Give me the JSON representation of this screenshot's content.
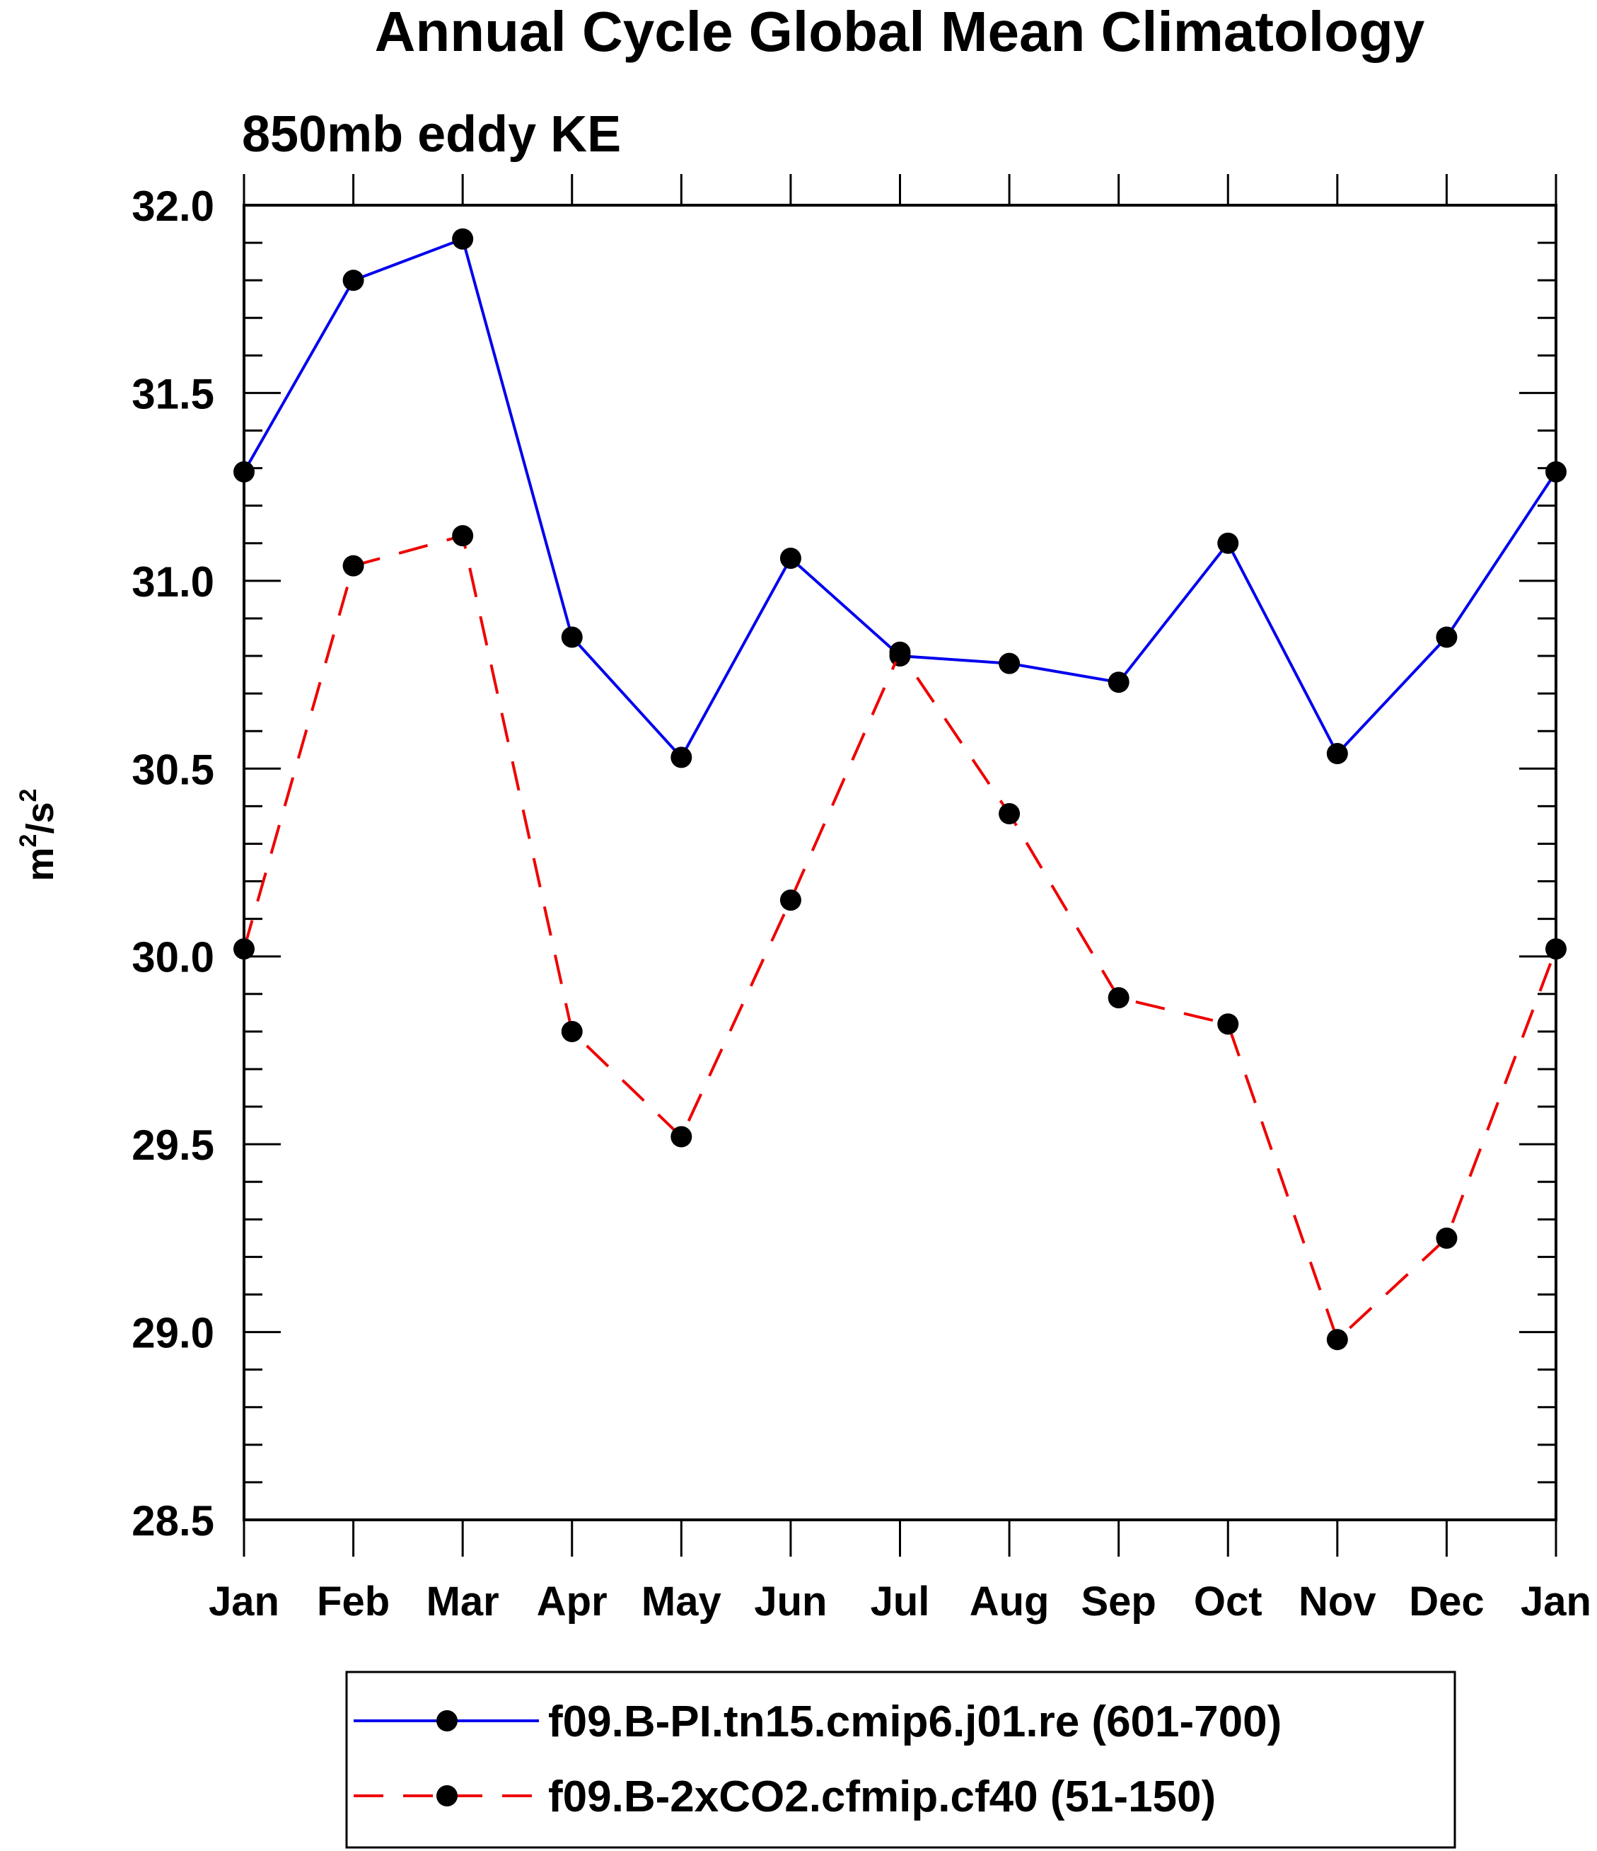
{
  "chart_data": {
    "type": "line",
    "title": "Annual Cycle Global Mean Climatology",
    "subtitle": "850mb eddy KE",
    "ylabel_base": "m",
    "ylabel_mid": "/s",
    "ylabel_sup": "2",
    "xlabel": "",
    "categories": [
      "Jan",
      "Feb",
      "Mar",
      "Apr",
      "May",
      "Jun",
      "Jul",
      "Aug",
      "Sep",
      "Oct",
      "Nov",
      "Dec",
      "Jan"
    ],
    "ylim": [
      28.5,
      32.0
    ],
    "yticks": [
      "28.5",
      "29.0",
      "29.5",
      "30.0",
      "30.5",
      "31.0",
      "31.5",
      "32.0"
    ],
    "series": [
      {
        "name": "f09.B-PI.tn15.cmip6.j01.re (601-700)",
        "color": "#0000ee",
        "dash": "solid",
        "values": [
          31.29,
          31.8,
          31.91,
          30.85,
          30.53,
          31.06,
          30.8,
          30.78,
          30.73,
          31.1,
          30.54,
          30.85,
          31.29
        ]
      },
      {
        "name": "f09.B-2xCO2.cfmip.cf40 (51-150)",
        "color": "#ee0000",
        "dash": "dashed",
        "values": [
          30.02,
          31.04,
          31.12,
          29.8,
          29.52,
          30.15,
          30.81,
          30.38,
          29.89,
          29.82,
          28.98,
          29.25,
          30.02
        ]
      }
    ]
  }
}
